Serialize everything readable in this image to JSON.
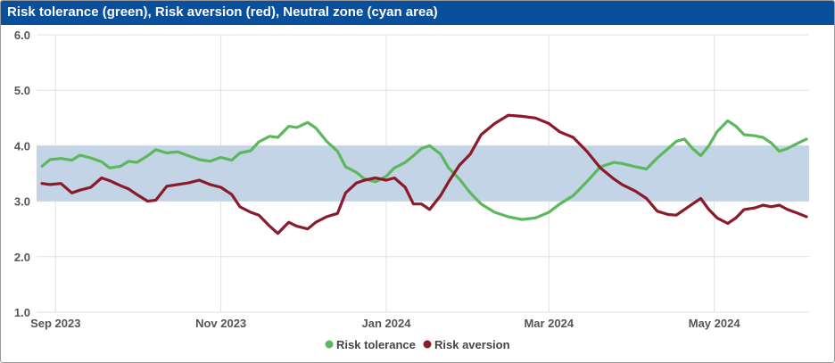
{
  "title": "Risk tolerance (green), Risk aversion (red), Neutral zone (cyan area)",
  "colors": {
    "green": "#5cb85c",
    "red": "#8b1a2b",
    "band": "#c3d4e6",
    "header": "#0a4f9c",
    "grid": "#e1e1e1"
  },
  "chart_data": {
    "type": "line",
    "title": "Risk tolerance (green), Risk aversion (red), Neutral zone (cyan area)",
    "x_range": [
      "2023-08-25",
      "2024-06-05"
    ],
    "ylim": [
      1.0,
      6.0
    ],
    "y_ticks": [
      "6.0",
      "5.0",
      "4.0",
      "3.0",
      "2.0",
      "1.0"
    ],
    "x_ticks": [
      {
        "date": "2023-09-01",
        "label": "Sep 2023"
      },
      {
        "date": "2023-11-01",
        "label": "Nov 2023"
      },
      {
        "date": "2024-01-01",
        "label": "Jan 2024"
      },
      {
        "date": "2024-03-01",
        "label": "Mar 2024"
      },
      {
        "date": "2024-05-01",
        "label": "May 2024"
      }
    ],
    "neutral_zone": [
      3.0,
      4.0
    ],
    "grid": true,
    "legend_position": "bottom",
    "series": [
      {
        "name": "Risk tolerance",
        "color": "#5cb85c",
        "points": [
          [
            "2023-08-27",
            3.63
          ],
          [
            "2023-08-30",
            3.75
          ],
          [
            "2023-09-03",
            3.77
          ],
          [
            "2023-09-07",
            3.74
          ],
          [
            "2023-09-10",
            3.83
          ],
          [
            "2023-09-14",
            3.78
          ],
          [
            "2023-09-18",
            3.71
          ],
          [
            "2023-09-21",
            3.6
          ],
          [
            "2023-09-25",
            3.63
          ],
          [
            "2023-09-28",
            3.72
          ],
          [
            "2023-10-01",
            3.7
          ],
          [
            "2023-10-05",
            3.82
          ],
          [
            "2023-10-08",
            3.93
          ],
          [
            "2023-10-12",
            3.87
          ],
          [
            "2023-10-16",
            3.89
          ],
          [
            "2023-10-20",
            3.82
          ],
          [
            "2023-10-24",
            3.75
          ],
          [
            "2023-10-28",
            3.72
          ],
          [
            "2023-11-01",
            3.79
          ],
          [
            "2023-11-05",
            3.74
          ],
          [
            "2023-11-08",
            3.87
          ],
          [
            "2023-11-12",
            3.91
          ],
          [
            "2023-11-15",
            4.07
          ],
          [
            "2023-11-19",
            4.17
          ],
          [
            "2023-11-22",
            4.15
          ],
          [
            "2023-11-26",
            4.35
          ],
          [
            "2023-11-29",
            4.33
          ],
          [
            "2023-12-03",
            4.42
          ],
          [
            "2023-12-06",
            4.32
          ],
          [
            "2023-12-10",
            4.08
          ],
          [
            "2023-12-14",
            3.9
          ],
          [
            "2023-12-17",
            3.62
          ],
          [
            "2023-12-21",
            3.52
          ],
          [
            "2023-12-24",
            3.4
          ],
          [
            "2023-12-28",
            3.35
          ],
          [
            "2024-01-01",
            3.45
          ],
          [
            "2024-01-04",
            3.6
          ],
          [
            "2024-01-08",
            3.7
          ],
          [
            "2024-01-11",
            3.82
          ],
          [
            "2024-01-14",
            3.95
          ],
          [
            "2024-01-17",
            4.0
          ],
          [
            "2024-01-21",
            3.85
          ],
          [
            "2024-01-24",
            3.6
          ],
          [
            "2024-01-28",
            3.4
          ],
          [
            "2024-02-01",
            3.15
          ],
          [
            "2024-02-05",
            2.95
          ],
          [
            "2024-02-10",
            2.8
          ],
          [
            "2024-02-15",
            2.72
          ],
          [
            "2024-02-20",
            2.67
          ],
          [
            "2024-02-25",
            2.7
          ],
          [
            "2024-03-01",
            2.8
          ],
          [
            "2024-03-05",
            2.95
          ],
          [
            "2024-03-10",
            3.1
          ],
          [
            "2024-03-15",
            3.35
          ],
          [
            "2024-03-20",
            3.62
          ],
          [
            "2024-03-25",
            3.7
          ],
          [
            "2024-03-28",
            3.68
          ],
          [
            "2024-04-02",
            3.62
          ],
          [
            "2024-04-06",
            3.58
          ],
          [
            "2024-04-10",
            3.78
          ],
          [
            "2024-04-14",
            3.95
          ],
          [
            "2024-04-17",
            4.08
          ],
          [
            "2024-04-20",
            4.12
          ],
          [
            "2024-04-23",
            3.95
          ],
          [
            "2024-04-26",
            3.82
          ],
          [
            "2024-04-29",
            4.0
          ],
          [
            "2024-05-02",
            4.25
          ],
          [
            "2024-05-06",
            4.45
          ],
          [
            "2024-05-09",
            4.35
          ],
          [
            "2024-05-12",
            4.2
          ],
          [
            "2024-05-16",
            4.18
          ],
          [
            "2024-05-19",
            4.15
          ],
          [
            "2024-05-22",
            4.05
          ],
          [
            "2024-05-25",
            3.9
          ],
          [
            "2024-05-28",
            3.95
          ],
          [
            "2024-06-01",
            4.05
          ],
          [
            "2024-06-04",
            4.12
          ]
        ]
      },
      {
        "name": "Risk aversion",
        "color": "#8b1a2b",
        "points": [
          [
            "2023-08-27",
            3.32
          ],
          [
            "2023-08-30",
            3.3
          ],
          [
            "2023-09-03",
            3.32
          ],
          [
            "2023-09-07",
            3.15
          ],
          [
            "2023-09-10",
            3.2
          ],
          [
            "2023-09-14",
            3.25
          ],
          [
            "2023-09-18",
            3.42
          ],
          [
            "2023-09-21",
            3.37
          ],
          [
            "2023-09-25",
            3.28
          ],
          [
            "2023-09-28",
            3.22
          ],
          [
            "2023-10-01",
            3.12
          ],
          [
            "2023-10-05",
            3.0
          ],
          [
            "2023-10-08",
            3.02
          ],
          [
            "2023-10-12",
            3.27
          ],
          [
            "2023-10-16",
            3.3
          ],
          [
            "2023-10-20",
            3.33
          ],
          [
            "2023-10-24",
            3.38
          ],
          [
            "2023-10-28",
            3.3
          ],
          [
            "2023-11-01",
            3.25
          ],
          [
            "2023-11-05",
            3.12
          ],
          [
            "2023-11-08",
            2.9
          ],
          [
            "2023-11-12",
            2.8
          ],
          [
            "2023-11-15",
            2.75
          ],
          [
            "2023-11-19",
            2.55
          ],
          [
            "2023-11-22",
            2.42
          ],
          [
            "2023-11-26",
            2.62
          ],
          [
            "2023-11-29",
            2.55
          ],
          [
            "2023-12-03",
            2.5
          ],
          [
            "2023-12-06",
            2.62
          ],
          [
            "2023-12-10",
            2.72
          ],
          [
            "2023-12-14",
            2.78
          ],
          [
            "2023-12-17",
            3.15
          ],
          [
            "2023-12-21",
            3.33
          ],
          [
            "2023-12-24",
            3.38
          ],
          [
            "2023-12-28",
            3.42
          ],
          [
            "2024-01-01",
            3.38
          ],
          [
            "2024-01-04",
            3.42
          ],
          [
            "2024-01-08",
            3.25
          ],
          [
            "2024-01-11",
            2.95
          ],
          [
            "2024-01-14",
            2.95
          ],
          [
            "2024-01-17",
            2.85
          ],
          [
            "2024-01-21",
            3.1
          ],
          [
            "2024-01-24",
            3.35
          ],
          [
            "2024-01-28",
            3.65
          ],
          [
            "2024-02-01",
            3.85
          ],
          [
            "2024-02-05",
            4.2
          ],
          [
            "2024-02-10",
            4.4
          ],
          [
            "2024-02-15",
            4.55
          ],
          [
            "2024-02-20",
            4.53
          ],
          [
            "2024-02-25",
            4.5
          ],
          [
            "2024-03-01",
            4.4
          ],
          [
            "2024-03-05",
            4.25
          ],
          [
            "2024-03-10",
            4.15
          ],
          [
            "2024-03-15",
            3.9
          ],
          [
            "2024-03-20",
            3.6
          ],
          [
            "2024-03-25",
            3.4
          ],
          [
            "2024-03-28",
            3.3
          ],
          [
            "2024-04-02",
            3.18
          ],
          [
            "2024-04-06",
            3.05
          ],
          [
            "2024-04-10",
            2.82
          ],
          [
            "2024-04-14",
            2.76
          ],
          [
            "2024-04-17",
            2.75
          ],
          [
            "2024-04-20",
            2.85
          ],
          [
            "2024-04-23",
            2.95
          ],
          [
            "2024-04-26",
            3.05
          ],
          [
            "2024-04-29",
            2.85
          ],
          [
            "2024-05-02",
            2.7
          ],
          [
            "2024-05-06",
            2.6
          ],
          [
            "2024-05-09",
            2.7
          ],
          [
            "2024-05-12",
            2.85
          ],
          [
            "2024-05-16",
            2.88
          ],
          [
            "2024-05-19",
            2.93
          ],
          [
            "2024-05-22",
            2.9
          ],
          [
            "2024-05-25",
            2.93
          ],
          [
            "2024-05-28",
            2.85
          ],
          [
            "2024-06-01",
            2.78
          ],
          [
            "2024-06-04",
            2.72
          ]
        ]
      }
    ]
  }
}
